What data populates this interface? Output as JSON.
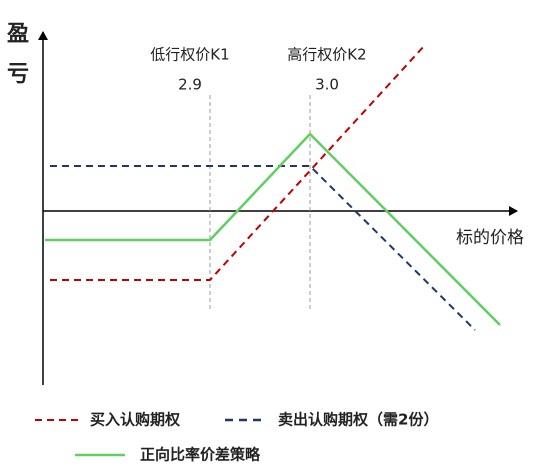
{
  "y_axis_label": [
    "盈",
    "亏"
  ],
  "x_axis_label": "标的价格",
  "strikes": [
    {
      "label": "低行权价K1",
      "value": "2.9"
    },
    {
      "label": "高行权价K2",
      "value": "3.0"
    }
  ],
  "legend": [
    "买入认购期权",
    "卖出认购期权（需2份）",
    "正向比率价差策略"
  ]
}
